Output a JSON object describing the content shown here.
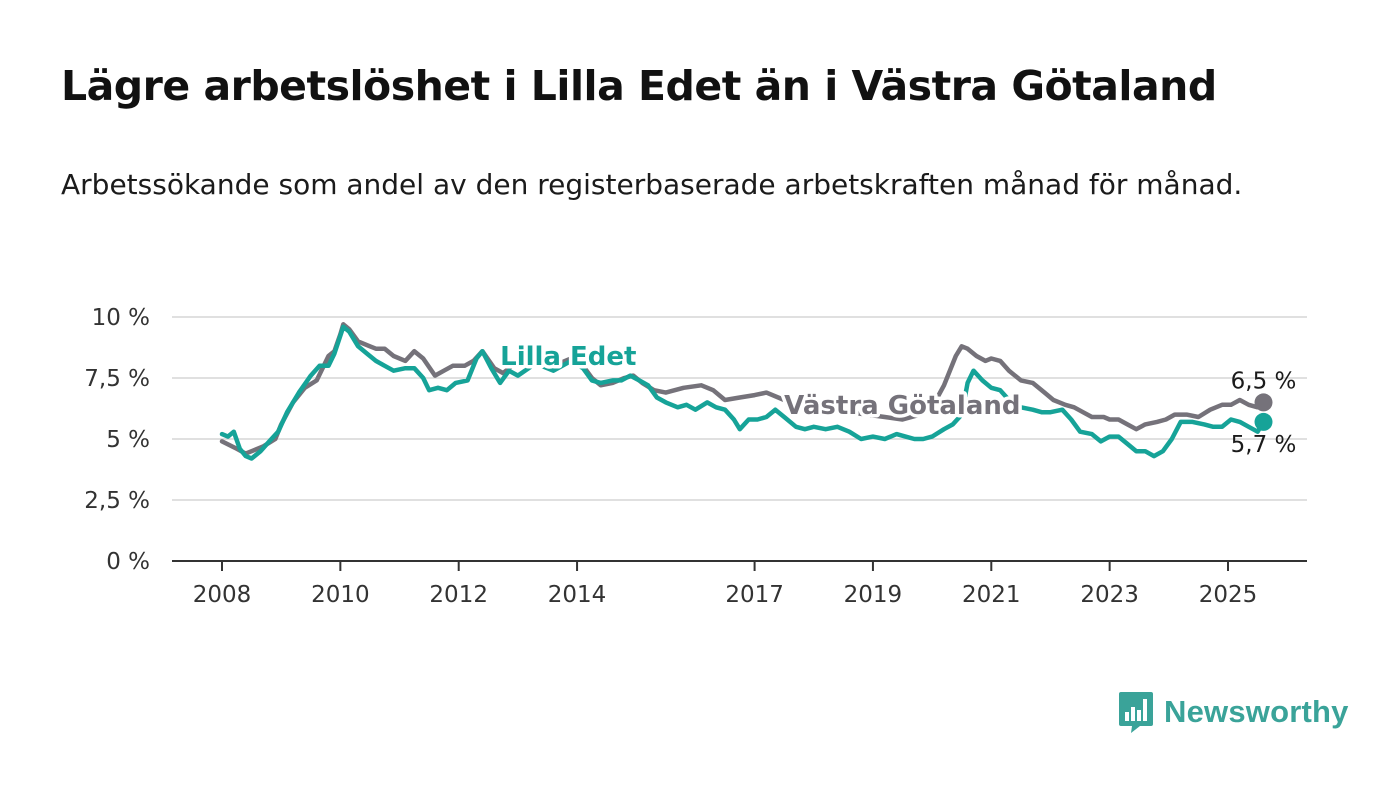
{
  "title": "Lägre arbetslöshet i Lilla Edet än i Västra Götaland",
  "subtitle": "Arbetssökande som andel av den registerbaserade arbetskraften månad för månad.",
  "brand": {
    "name": "Newsworthy",
    "icon": "newsworthy-logo-icon",
    "color": "#3aa399"
  },
  "chart_data": {
    "type": "line",
    "title": "Lägre arbetslöshet i Lilla Edet än i Västra Götaland",
    "subtitle": "Arbetssökande som andel av den registerbaserade arbetskraften månad för månad.",
    "xlabel": "",
    "ylabel": "",
    "xlim": [
      2007.3,
      2026.5
    ],
    "ylim": [
      0,
      10
    ],
    "grid": true,
    "legend": "inline",
    "yticks": [
      {
        "value": 0,
        "label": "0 %"
      },
      {
        "value": 2.5,
        "label": "2,5 %"
      },
      {
        "value": 5,
        "label": "5 %"
      },
      {
        "value": 7.5,
        "label": "7,5 %"
      },
      {
        "value": 10,
        "label": "10 %"
      }
    ],
    "xticks": [
      {
        "value": 2008,
        "label": "2008"
      },
      {
        "value": 2010,
        "label": "2010"
      },
      {
        "value": 2012,
        "label": "2012"
      },
      {
        "value": 2014,
        "label": "2014"
      },
      {
        "value": 2017,
        "label": "2017"
      },
      {
        "value": 2019,
        "label": "2019"
      },
      {
        "value": 2021,
        "label": "2021"
      },
      {
        "value": 2023,
        "label": "2023"
      },
      {
        "value": 2025,
        "label": "2025"
      }
    ],
    "series": [
      {
        "name": "Västra Götaland",
        "color": "#75727a",
        "label_position": [
          2017.5,
          6.4
        ],
        "end_label": "6,5 %",
        "points": [
          [
            2008.0,
            4.9
          ],
          [
            2008.25,
            4.6
          ],
          [
            2008.4,
            4.4
          ],
          [
            2008.5,
            4.5
          ],
          [
            2008.7,
            4.7
          ],
          [
            2008.9,
            5.0
          ],
          [
            2009.0,
            5.6
          ],
          [
            2009.2,
            6.5
          ],
          [
            2009.4,
            7.1
          ],
          [
            2009.6,
            7.4
          ],
          [
            2009.8,
            8.4
          ],
          [
            2009.9,
            8.6
          ],
          [
            2010.0,
            9.3
          ],
          [
            2010.05,
            9.7
          ],
          [
            2010.15,
            9.5
          ],
          [
            2010.3,
            9.0
          ],
          [
            2010.5,
            8.8
          ],
          [
            2010.6,
            8.7
          ],
          [
            2010.75,
            8.7
          ],
          [
            2010.9,
            8.4
          ],
          [
            2011.1,
            8.2
          ],
          [
            2011.25,
            8.6
          ],
          [
            2011.4,
            8.3
          ],
          [
            2011.6,
            7.6
          ],
          [
            2011.75,
            7.8
          ],
          [
            2011.9,
            8.0
          ],
          [
            2012.1,
            8.0
          ],
          [
            2012.25,
            8.2
          ],
          [
            2012.4,
            8.6
          ],
          [
            2012.6,
            7.9
          ],
          [
            2012.75,
            7.7
          ],
          [
            2012.9,
            8.0
          ],
          [
            2013.0,
            8.1
          ],
          [
            2013.3,
            8.2
          ],
          [
            2013.6,
            8.0
          ],
          [
            2013.9,
            8.3
          ],
          [
            2014.1,
            8.0
          ],
          [
            2014.25,
            7.5
          ],
          [
            2014.4,
            7.2
          ],
          [
            2014.6,
            7.3
          ],
          [
            2014.8,
            7.5
          ],
          [
            2014.95,
            7.6
          ],
          [
            2015.1,
            7.3
          ],
          [
            2015.3,
            7.0
          ],
          [
            2015.5,
            6.9
          ],
          [
            2015.8,
            7.1
          ],
          [
            2016.1,
            7.2
          ],
          [
            2016.3,
            7.0
          ],
          [
            2016.5,
            6.6
          ],
          [
            2016.75,
            6.7
          ],
          [
            2017.0,
            6.8
          ],
          [
            2017.2,
            6.9
          ],
          [
            2017.5,
            6.6
          ],
          [
            2017.7,
            6.4
          ],
          [
            2018.0,
            6.3
          ],
          [
            2018.3,
            6.2
          ],
          [
            2018.6,
            6.1
          ],
          [
            2018.9,
            6.0
          ],
          [
            2019.2,
            5.9
          ],
          [
            2019.5,
            5.8
          ],
          [
            2019.8,
            6.0
          ],
          [
            2020.0,
            6.3
          ],
          [
            2020.2,
            7.2
          ],
          [
            2020.4,
            8.4
          ],
          [
            2020.5,
            8.8
          ],
          [
            2020.6,
            8.7
          ],
          [
            2020.75,
            8.4
          ],
          [
            2020.9,
            8.2
          ],
          [
            2021.0,
            8.3
          ],
          [
            2021.15,
            8.2
          ],
          [
            2021.3,
            7.8
          ],
          [
            2021.5,
            7.4
          ],
          [
            2021.7,
            7.3
          ],
          [
            2021.9,
            6.9
          ],
          [
            2022.05,
            6.6
          ],
          [
            2022.25,
            6.4
          ],
          [
            2022.4,
            6.3
          ],
          [
            2022.55,
            6.1
          ],
          [
            2022.7,
            5.9
          ],
          [
            2022.9,
            5.9
          ],
          [
            2023.0,
            5.8
          ],
          [
            2023.15,
            5.8
          ],
          [
            2023.3,
            5.6
          ],
          [
            2023.45,
            5.4
          ],
          [
            2023.6,
            5.6
          ],
          [
            2023.8,
            5.7
          ],
          [
            2023.95,
            5.8
          ],
          [
            2024.1,
            6.0
          ],
          [
            2024.3,
            6.0
          ],
          [
            2024.5,
            5.9
          ],
          [
            2024.7,
            6.2
          ],
          [
            2024.9,
            6.4
          ],
          [
            2025.05,
            6.4
          ],
          [
            2025.2,
            6.6
          ],
          [
            2025.35,
            6.4
          ],
          [
            2025.5,
            6.3
          ],
          [
            2025.6,
            6.5
          ]
        ]
      },
      {
        "name": "Lilla Edet",
        "color": "#16a398",
        "label_position": [
          2012.7,
          8.4
        ],
        "end_label": "5,7 %",
        "points": [
          [
            2008.0,
            5.2
          ],
          [
            2008.1,
            5.1
          ],
          [
            2008.2,
            5.3
          ],
          [
            2008.3,
            4.6
          ],
          [
            2008.4,
            4.3
          ],
          [
            2008.5,
            4.2
          ],
          [
            2008.65,
            4.5
          ],
          [
            2008.8,
            4.9
          ],
          [
            2008.95,
            5.3
          ],
          [
            2009.1,
            6.1
          ],
          [
            2009.3,
            6.9
          ],
          [
            2009.5,
            7.6
          ],
          [
            2009.65,
            8.0
          ],
          [
            2009.8,
            8.0
          ],
          [
            2009.9,
            8.5
          ],
          [
            2010.05,
            9.6
          ],
          [
            2010.15,
            9.4
          ],
          [
            2010.3,
            8.8
          ],
          [
            2010.45,
            8.5
          ],
          [
            2010.6,
            8.2
          ],
          [
            2010.75,
            8.0
          ],
          [
            2010.9,
            7.8
          ],
          [
            2011.1,
            7.9
          ],
          [
            2011.25,
            7.9
          ],
          [
            2011.4,
            7.5
          ],
          [
            2011.5,
            7.0
          ],
          [
            2011.65,
            7.1
          ],
          [
            2011.8,
            7.0
          ],
          [
            2011.95,
            7.3
          ],
          [
            2012.15,
            7.4
          ],
          [
            2012.3,
            8.3
          ],
          [
            2012.4,
            8.6
          ],
          [
            2012.55,
            7.9
          ],
          [
            2012.7,
            7.3
          ],
          [
            2012.85,
            7.8
          ],
          [
            2013.0,
            7.6
          ],
          [
            2013.3,
            8.1
          ],
          [
            2013.6,
            7.8
          ],
          [
            2013.9,
            8.2
          ],
          [
            2014.1,
            7.9
          ],
          [
            2014.25,
            7.4
          ],
          [
            2014.4,
            7.3
          ],
          [
            2014.6,
            7.4
          ],
          [
            2014.75,
            7.4
          ],
          [
            2014.9,
            7.6
          ],
          [
            2015.05,
            7.4
          ],
          [
            2015.2,
            7.2
          ],
          [
            2015.35,
            6.7
          ],
          [
            2015.5,
            6.5
          ],
          [
            2015.7,
            6.3
          ],
          [
            2015.85,
            6.4
          ],
          [
            2016.0,
            6.2
          ],
          [
            2016.2,
            6.5
          ],
          [
            2016.35,
            6.3
          ],
          [
            2016.5,
            6.2
          ],
          [
            2016.65,
            5.8
          ],
          [
            2016.75,
            5.4
          ],
          [
            2016.9,
            5.8
          ],
          [
            2017.05,
            5.8
          ],
          [
            2017.2,
            5.9
          ],
          [
            2017.35,
            6.2
          ],
          [
            2017.5,
            5.9
          ],
          [
            2017.7,
            5.5
          ],
          [
            2017.85,
            5.4
          ],
          [
            2018.0,
            5.5
          ],
          [
            2018.2,
            5.4
          ],
          [
            2018.4,
            5.5
          ],
          [
            2018.6,
            5.3
          ],
          [
            2018.8,
            5.0
          ],
          [
            2019.0,
            5.1
          ],
          [
            2019.2,
            5.0
          ],
          [
            2019.4,
            5.2
          ],
          [
            2019.55,
            5.1
          ],
          [
            2019.7,
            5.0
          ],
          [
            2019.85,
            5.0
          ],
          [
            2020.0,
            5.1
          ],
          [
            2020.2,
            5.4
          ],
          [
            2020.35,
            5.6
          ],
          [
            2020.5,
            6.0
          ],
          [
            2020.6,
            7.3
          ],
          [
            2020.7,
            7.8
          ],
          [
            2020.85,
            7.4
          ],
          [
            2021.0,
            7.1
          ],
          [
            2021.15,
            7.0
          ],
          [
            2021.3,
            6.6
          ],
          [
            2021.5,
            6.3
          ],
          [
            2021.7,
            6.2
          ],
          [
            2021.85,
            6.1
          ],
          [
            2022.0,
            6.1
          ],
          [
            2022.2,
            6.2
          ],
          [
            2022.35,
            5.8
          ],
          [
            2022.5,
            5.3
          ],
          [
            2022.7,
            5.2
          ],
          [
            2022.85,
            4.9
          ],
          [
            2023.0,
            5.1
          ],
          [
            2023.15,
            5.1
          ],
          [
            2023.3,
            4.8
          ],
          [
            2023.45,
            4.5
          ],
          [
            2023.6,
            4.5
          ],
          [
            2023.75,
            4.3
          ],
          [
            2023.9,
            4.5
          ],
          [
            2024.05,
            5.0
          ],
          [
            2024.2,
            5.7
          ],
          [
            2024.4,
            5.7
          ],
          [
            2024.6,
            5.6
          ],
          [
            2024.75,
            5.5
          ],
          [
            2024.9,
            5.5
          ],
          [
            2025.05,
            5.8
          ],
          [
            2025.2,
            5.7
          ],
          [
            2025.35,
            5.5
          ],
          [
            2025.5,
            5.3
          ],
          [
            2025.6,
            5.7
          ]
        ]
      }
    ]
  }
}
